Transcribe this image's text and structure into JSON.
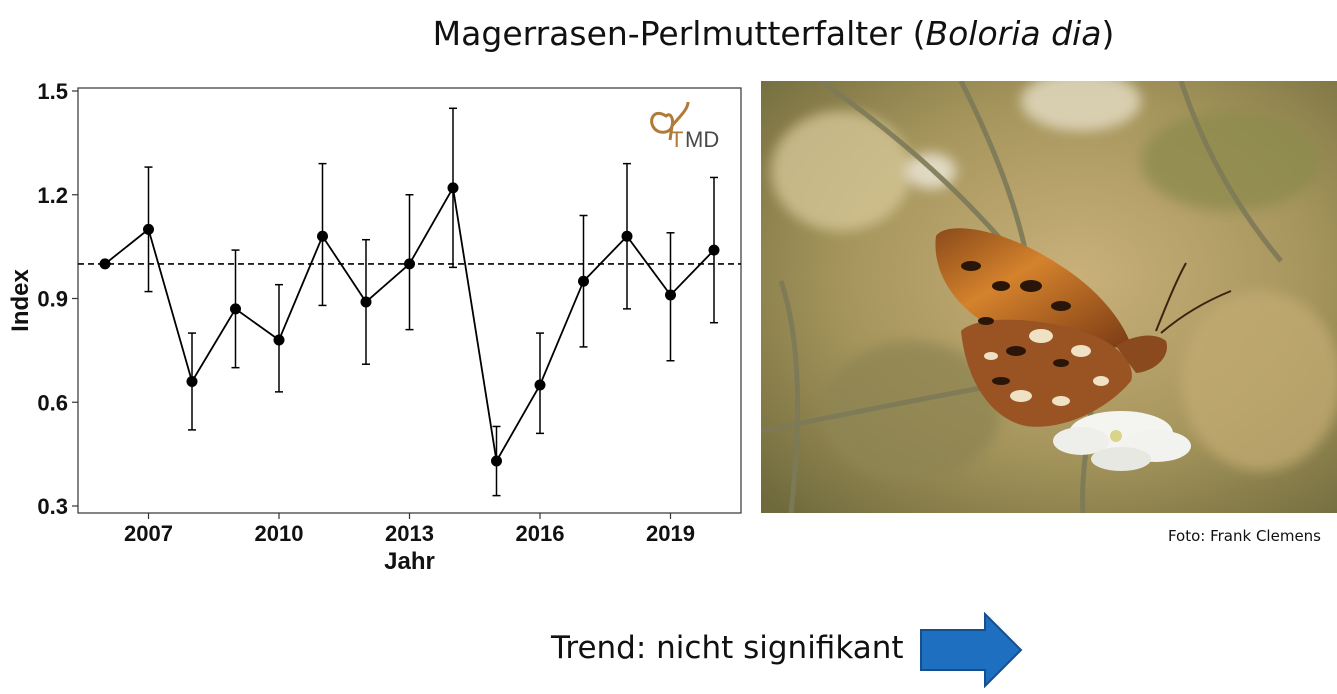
{
  "title": {
    "main": "Magerrasen-Perlmutterfalter (",
    "species": "Boloria dia",
    "close": ")"
  },
  "logo": {
    "text_t": "T",
    "text_md": "MD",
    "icon": "butterfly-outline-icon",
    "color": "#b07a3a"
  },
  "photo": {
    "credit": "Foto: Frank Clemens"
  },
  "trend": {
    "label": "Trend: nicht signifikant",
    "arrow_color": "#1f6fc0",
    "arrow_icon": "arrow-right-icon"
  },
  "chart_data": {
    "type": "line",
    "xlabel": "Jahr",
    "ylabel": "Index",
    "ylim": [
      0.3,
      1.5
    ],
    "xlim": [
      2006,
      2020
    ],
    "xticks": [
      2007,
      2010,
      2013,
      2016,
      2019
    ],
    "yticks": [
      "0.3",
      "0.6",
      "0.9",
      "1.2",
      "1.5"
    ],
    "reference_line": 1.0,
    "grid": false,
    "points": [
      {
        "x": 2006,
        "y": 1.0,
        "low": null,
        "high": null
      },
      {
        "x": 2007,
        "y": 1.1,
        "low": 0.92,
        "high": 1.28
      },
      {
        "x": 2008,
        "y": 0.66,
        "low": 0.52,
        "high": 0.8
      },
      {
        "x": 2009,
        "y": 0.87,
        "low": 0.7,
        "high": 1.04
      },
      {
        "x": 2010,
        "y": 0.78,
        "low": 0.63,
        "high": 0.94
      },
      {
        "x": 2011,
        "y": 1.08,
        "low": 0.88,
        "high": 1.29
      },
      {
        "x": 2012,
        "y": 0.89,
        "low": 0.71,
        "high": 1.07
      },
      {
        "x": 2013,
        "y": 1.0,
        "low": 0.81,
        "high": 1.2
      },
      {
        "x": 2014,
        "y": 1.22,
        "low": 0.99,
        "high": 1.45
      },
      {
        "x": 2015,
        "y": 0.43,
        "low": 0.33,
        "high": 0.53
      },
      {
        "x": 2016,
        "y": 0.65,
        "low": 0.51,
        "high": 0.8
      },
      {
        "x": 2017,
        "y": 0.95,
        "low": 0.76,
        "high": 1.14
      },
      {
        "x": 2018,
        "y": 1.08,
        "low": 0.87,
        "high": 1.29
      },
      {
        "x": 2019,
        "y": 0.91,
        "low": 0.72,
        "high": 1.09
      },
      {
        "x": 2020,
        "y": 1.04,
        "low": 0.83,
        "high": 1.25
      }
    ]
  }
}
